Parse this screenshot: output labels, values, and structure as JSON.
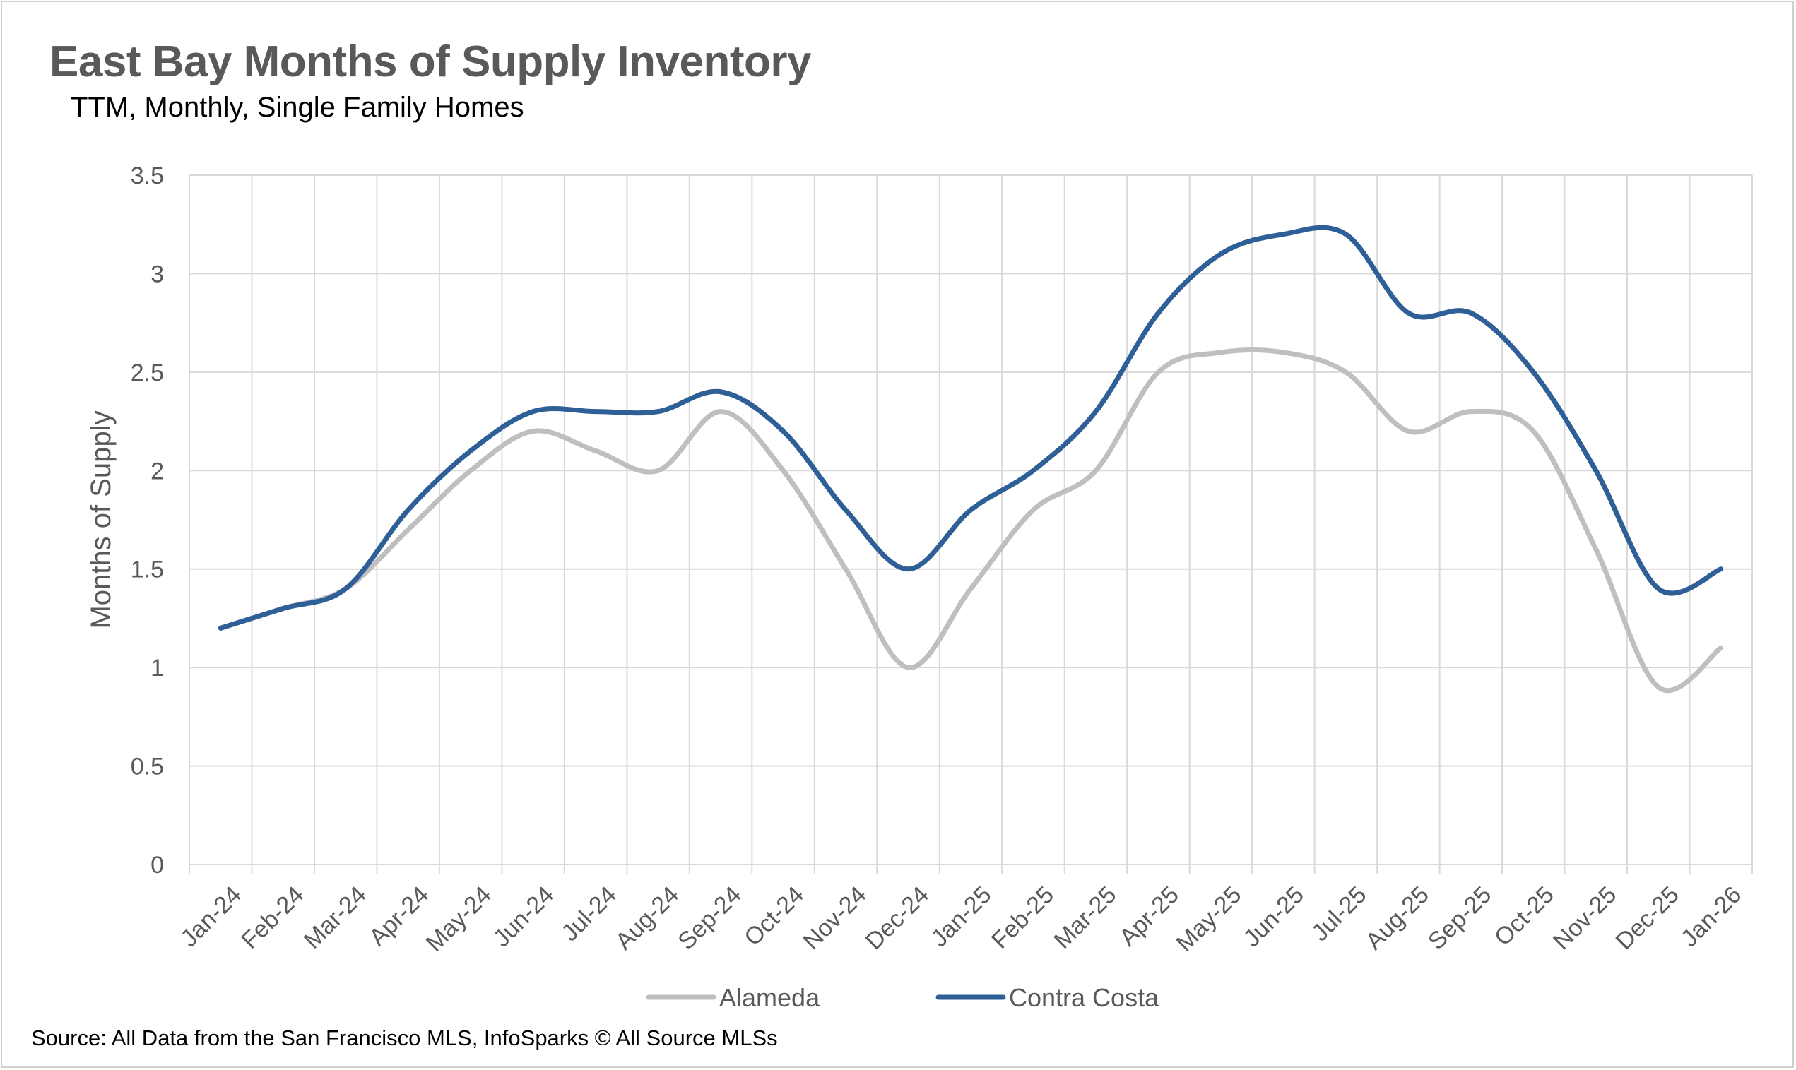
{
  "title": "East Bay Months of Supply Inventory",
  "subtitle": "TTM, Monthly, Single Family Homes",
  "source": "Source: All Data from the San Francisco MLS, InfoSparks © All Source MLSs",
  "colors": {
    "alameda": "#BFBFBF",
    "contra_costa": "#2E5F96",
    "grid": "#D9D9D9",
    "text": "#595959"
  },
  "chart_data": {
    "type": "line",
    "title": "East Bay Months of Supply Inventory",
    "subtitle": "TTM, Monthly, Single Family Homes",
    "xlabel": "",
    "ylabel": "Months of Supply",
    "ylim": [
      0,
      3.5
    ],
    "yticks": [
      "0",
      "0.5",
      "1",
      "1.5",
      "2",
      "2.5",
      "3",
      "3.5"
    ],
    "grid": true,
    "legend_position": "bottom",
    "categories": [
      "Jan-24",
      "Feb-24",
      "Mar-24",
      "Apr-24",
      "May-24",
      "Jun-24",
      "Jul-24",
      "Aug-24",
      "Sep-24",
      "Oct-24",
      "Nov-24",
      "Dec-24",
      "Jan-25",
      "Feb-25",
      "Mar-25",
      "Apr-25",
      "May-25",
      "Jun-25",
      "Jul-25",
      "Aug-25",
      "Sep-25",
      "Oct-25",
      "Nov-25",
      "Dec-25",
      "Jan-26"
    ],
    "series": [
      {
        "name": "Alameda",
        "color": "#BFBFBF",
        "values": [
          1.2,
          1.3,
          1.4,
          1.7,
          2.0,
          2.2,
          2.1,
          2.0,
          2.3,
          2.0,
          1.5,
          1.0,
          1.4,
          1.8,
          2.0,
          2.5,
          2.6,
          2.6,
          2.5,
          2.2,
          2.3,
          2.2,
          1.6,
          0.9,
          1.1
        ]
      },
      {
        "name": "Contra Costa",
        "color": "#2E5F96",
        "values": [
          1.2,
          1.3,
          1.4,
          1.8,
          2.1,
          2.3,
          2.3,
          2.3,
          2.4,
          2.2,
          1.8,
          1.5,
          1.8,
          2.0,
          2.3,
          2.8,
          3.1,
          3.2,
          3.2,
          2.8,
          2.8,
          2.5,
          2.0,
          1.4,
          1.5
        ]
      }
    ]
  }
}
